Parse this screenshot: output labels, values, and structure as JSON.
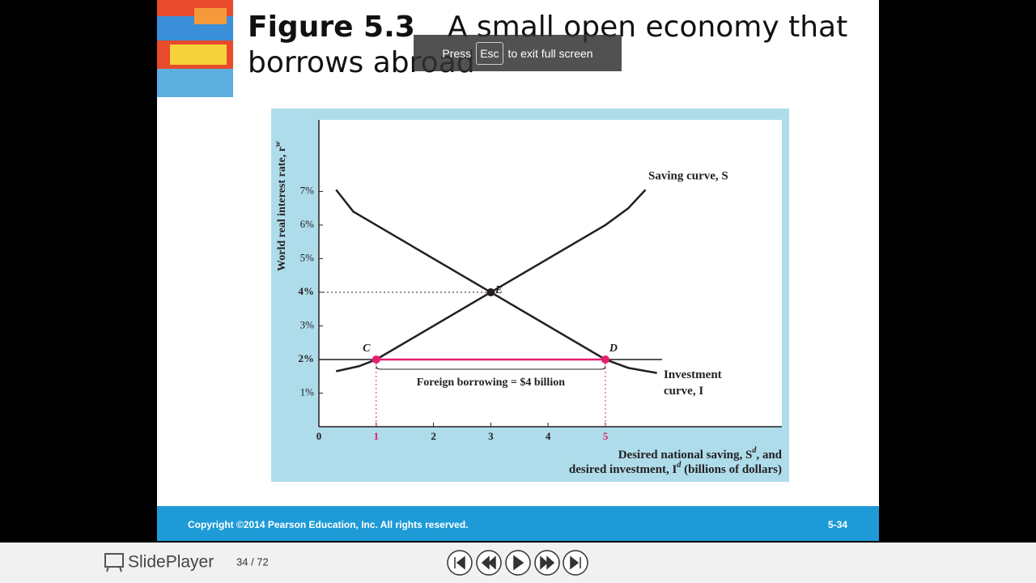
{
  "slide": {
    "title_number": "Figure 5.3",
    "title_text": "A small open economy that borrows abroad",
    "chart": {
      "type": "line",
      "y_label": "World real interest rate, r",
      "y_label_sup": "w",
      "xlim": [
        0,
        8.08
      ],
      "ylim": [
        0,
        9.13
      ],
      "xticks": [
        0,
        1,
        2,
        3,
        4,
        5
      ],
      "yticks": [
        {
          "value": 1,
          "label": "1%"
        },
        {
          "value": 2,
          "label": "2%"
        },
        {
          "value": 3,
          "label": "3%"
        },
        {
          "value": 4,
          "label": "4%"
        },
        {
          "value": 5,
          "label": "5%"
        },
        {
          "value": 6,
          "label": "6%"
        },
        {
          "value": 7,
          "label": "7%"
        }
      ],
      "series": [
        {
          "name": "Saving curve, S",
          "color": "#231f20",
          "x": [
            0.3,
            0.7,
            1,
            3,
            5,
            5.4,
            5.7
          ],
          "values": [
            1.65,
            1.8,
            2,
            4,
            6,
            6.5,
            7.05
          ]
        },
        {
          "name": "Investment curve, I",
          "color": "#231f20",
          "x": [
            0.3,
            0.6,
            1,
            3,
            5,
            5.4,
            5.9
          ],
          "values": [
            7.05,
            6.4,
            6,
            4,
            2,
            1.75,
            1.6
          ]
        }
      ],
      "world_rate": 2,
      "points": [
        {
          "label": "C",
          "x": 1,
          "y": 2
        },
        {
          "label": "D",
          "x": 5,
          "y": 2
        },
        {
          "label": "E",
          "x": 3,
          "y": 4
        }
      ],
      "highlight_color": "#e5206f",
      "annotation": "Foreign borrowing = $4 billion",
      "x_label": [
        {
          "text": "Desired national saving, S",
          "sup": "d",
          "tail": ", and"
        },
        {
          "text": "desired investment, I",
          "sup": "d",
          "tail": " (billions of dollars)"
        }
      ]
    },
    "fullscreen_notice": {
      "before": "Press",
      "key": "Esc",
      "after": "to exit full screen"
    },
    "footer": {
      "copyright": "Copyright ©2014 Pearson Education, Inc. All rights reserved.",
      "slide_number": "5-34"
    }
  },
  "player": {
    "brand": "SlidePlayer",
    "page_indicator": "34 / 72"
  }
}
